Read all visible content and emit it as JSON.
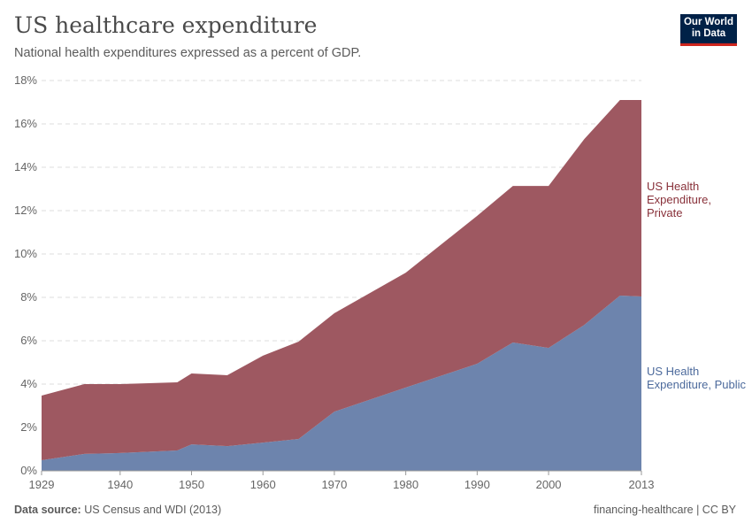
{
  "header": {
    "title": "US healthcare expenditure",
    "subtitle": "National health expenditures expressed as a percent of GDP.",
    "logo": "Our World in Data"
  },
  "footer": {
    "source_label": "Data source:",
    "source": "US Census and WDI (2013)",
    "license": "financing-healthcare | CC BY"
  },
  "chart_data": {
    "type": "area",
    "stacked": true,
    "title": "US healthcare expenditure",
    "ylabel": "",
    "xlabel": "",
    "xlim": [
      1929,
      2013
    ],
    "ylim": [
      0,
      18
    ],
    "x_ticks": [
      1929,
      1940,
      1950,
      1960,
      1970,
      1980,
      1990,
      2000,
      2013
    ],
    "y_ticks": [
      0,
      2,
      4,
      6,
      8,
      10,
      12,
      14,
      16,
      18
    ],
    "y_tick_labels": [
      "0%",
      "2%",
      "4%",
      "6%",
      "8%",
      "10%",
      "12%",
      "14%",
      "16%",
      "18%"
    ],
    "grid": "horizontal dashed",
    "legend": "right (inline labels)",
    "x": [
      1929,
      1935,
      1940,
      1948,
      1950,
      1955,
      1960,
      1965,
      1970,
      1980,
      1990,
      1995,
      2000,
      2005,
      2010,
      2013
    ],
    "series": [
      {
        "name": "US Health Expenditure, Public",
        "color": "#6d84ad",
        "values": [
          0.49,
          0.78,
          0.82,
          0.94,
          1.22,
          1.14,
          1.3,
          1.47,
          2.73,
          3.84,
          4.94,
          5.92,
          5.67,
          6.73,
          8.08,
          8.04
        ]
      },
      {
        "name": "US Health Expenditure, Private",
        "color": "#9e5861",
        "values": [
          2.98,
          3.22,
          3.18,
          3.14,
          3.27,
          3.27,
          4.01,
          4.49,
          4.54,
          5.3,
          6.82,
          7.22,
          7.47,
          8.57,
          9.02,
          9.06
        ]
      }
    ],
    "label_colors": {
      "public": "#4c6a9c",
      "private": "#883039"
    }
  }
}
